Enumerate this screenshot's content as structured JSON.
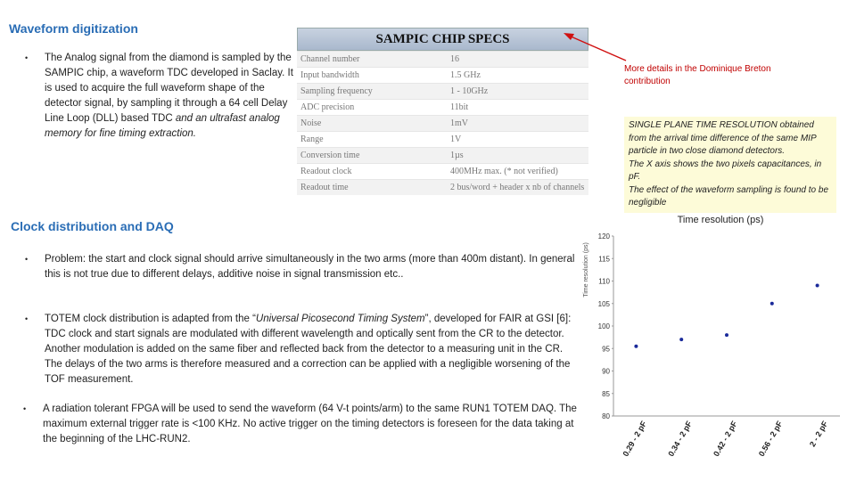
{
  "waveform": {
    "title": "Waveform digitization",
    "bullet": [
      "The Analog signal from the diamond is sampled by the SAMPIC chip, a waveform TDC developed in Saclay. It is used to acquire the full waveform shape of the detector signal, by sampling it through a 64 cell Delay Line Loop (DLL) based TDC ",
      "and an ultrafast analog memory for fine timing extraction."
    ]
  },
  "table": {
    "title": "SAMPIC CHIP SPECS",
    "rows": [
      [
        "Channel number",
        "16"
      ],
      [
        "Input bandwidth",
        "1.5 GHz"
      ],
      [
        "Sampling frequency",
        "1 - 10GHz"
      ],
      [
        "ADC precision",
        "11bit"
      ],
      [
        "Noise",
        "1mV"
      ],
      [
        "Range",
        "1V"
      ],
      [
        "Conversion time",
        "1µs"
      ],
      [
        "Readout clock",
        "400MHz max. (* not verified)"
      ],
      [
        "Readout time",
        "2 bus/word + header x nb of channels"
      ]
    ]
  },
  "note": "More details in the Dominique Breton contribution",
  "box": {
    "lines": [
      "SINGLE PLANE TIME RESOLUTION obtained from the arrival time difference of the same MIP particle in two close diamond detectors.",
      "The X axis shows the two pixels capacitances, in pF.",
      "The effect of the waveform sampling is found to be negligible"
    ]
  },
  "daq": {
    "title": "Clock distribution and DAQ",
    "bullets": [
      [
        "Problem: the start and clock signal should arrive simultaneously in the two arms (more than 400m distant). In general this is not true due to different delays, additive noise in signal transmission etc.."
      ],
      [
        "TOTEM clock distribution is adapted from the “",
        "Universal Picosecond Timing System",
        "”, developed for FAIR at GSI [6]: TDC clock and start signals are modulated with different wavelength and optically sent from the CR to the detector. Another modulation is added on the same fiber and reflected back from the detector to a measuring unit in the CR. The delays of the two arms is therefore measured and a correction can be applied with a negligible worsening of the TOF measurement."
      ],
      [
        "A radiation tolerant FPGA will be used to send the waveform (64 V-t points/arm) to the same RUN1 TOTEM DAQ. The maximum external trigger rate is <100 KHz. No active trigger on the timing detectors is foreseen for the data taking at the beginning of the LHC-RUN2."
      ]
    ]
  },
  "chart_data": {
    "type": "scatter",
    "title": "Time resolution (ps)",
    "y_label": "Time resolution (ps)",
    "categories": [
      "0.29 - 2 pF",
      "0.34 - 2 pF",
      "0.42 - 2 pF",
      "0.56 - 2 pF",
      "2 - 2 pF"
    ],
    "values": [
      95.5,
      97,
      98,
      105,
      109
    ],
    "color": "#1a2a9a",
    "ylim": [
      80,
      120
    ],
    "yticks": [
      80,
      85,
      90,
      95,
      100,
      105,
      110,
      115,
      120
    ]
  }
}
